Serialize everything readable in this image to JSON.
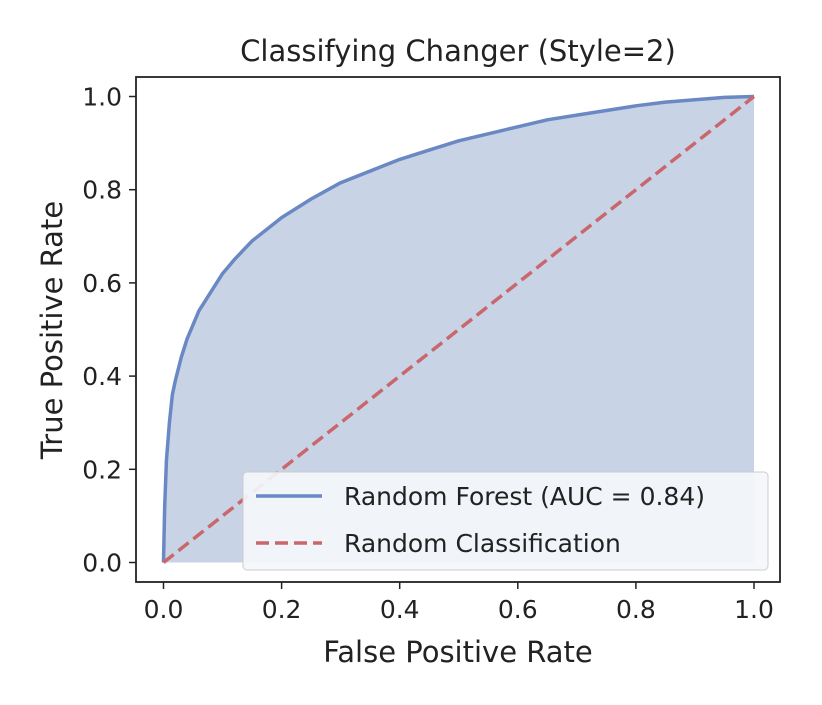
{
  "chart_data": {
    "type": "area",
    "title": "Classifying Changer (Style=2)",
    "xlabel": "False Positive Rate",
    "ylabel": "True Positive Rate",
    "xlim": [
      0.0,
      1.0
    ],
    "ylim": [
      0.0,
      1.0
    ],
    "x_ticks": [
      "0.0",
      "0.2",
      "0.4",
      "0.6",
      "0.8",
      "1.0"
    ],
    "y_ticks": [
      "0.0",
      "0.2",
      "0.4",
      "0.6",
      "0.8",
      "1.0"
    ],
    "grid": false,
    "legend_position": "lower-right",
    "series": [
      {
        "name": "Random Forest (AUC = 0.84)",
        "style": "solid",
        "fill": true,
        "color": "#6a88c3",
        "fill_color": "#c9d3e6",
        "x": [
          0.0,
          0.002,
          0.005,
          0.01,
          0.015,
          0.02,
          0.03,
          0.04,
          0.05,
          0.06,
          0.08,
          0.1,
          0.12,
          0.15,
          0.18,
          0.2,
          0.25,
          0.3,
          0.35,
          0.4,
          0.45,
          0.5,
          0.55,
          0.6,
          0.65,
          0.7,
          0.75,
          0.8,
          0.85,
          0.9,
          0.95,
          1.0
        ],
        "y": [
          0.0,
          0.12,
          0.22,
          0.3,
          0.36,
          0.39,
          0.44,
          0.48,
          0.51,
          0.54,
          0.58,
          0.62,
          0.65,
          0.69,
          0.72,
          0.74,
          0.78,
          0.815,
          0.84,
          0.865,
          0.885,
          0.905,
          0.92,
          0.935,
          0.95,
          0.96,
          0.97,
          0.98,
          0.988,
          0.993,
          0.998,
          1.0
        ]
      },
      {
        "name": "Random Classification",
        "style": "dashed",
        "fill": false,
        "color": "#c9676c",
        "x": [
          0.0,
          1.0
        ],
        "y": [
          0.0,
          1.0
        ]
      }
    ]
  },
  "colors": {
    "background": "#ffffff",
    "axes": "#222222",
    "legend_background": "#f4f6fa",
    "legend_border": "#cccccc"
  }
}
